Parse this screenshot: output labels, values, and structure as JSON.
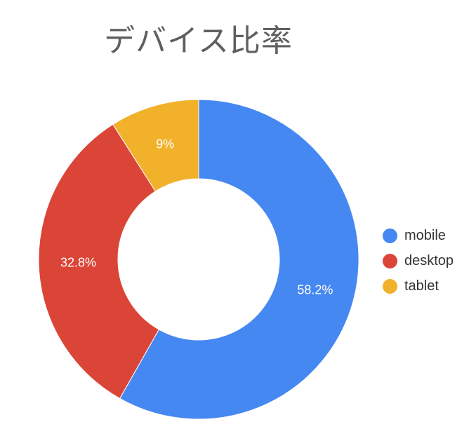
{
  "chart_data": {
    "type": "pie",
    "donut": true,
    "title": "デバイス比率",
    "categories": [
      "mobile",
      "desktop",
      "tablet"
    ],
    "values": [
      58.2,
      32.8,
      9
    ],
    "data_labels": [
      "58.2%",
      "32.8%",
      "9%"
    ],
    "colors": [
      "#4688f1",
      "#da4538",
      "#f2b12a"
    ],
    "legend_position": "right"
  }
}
